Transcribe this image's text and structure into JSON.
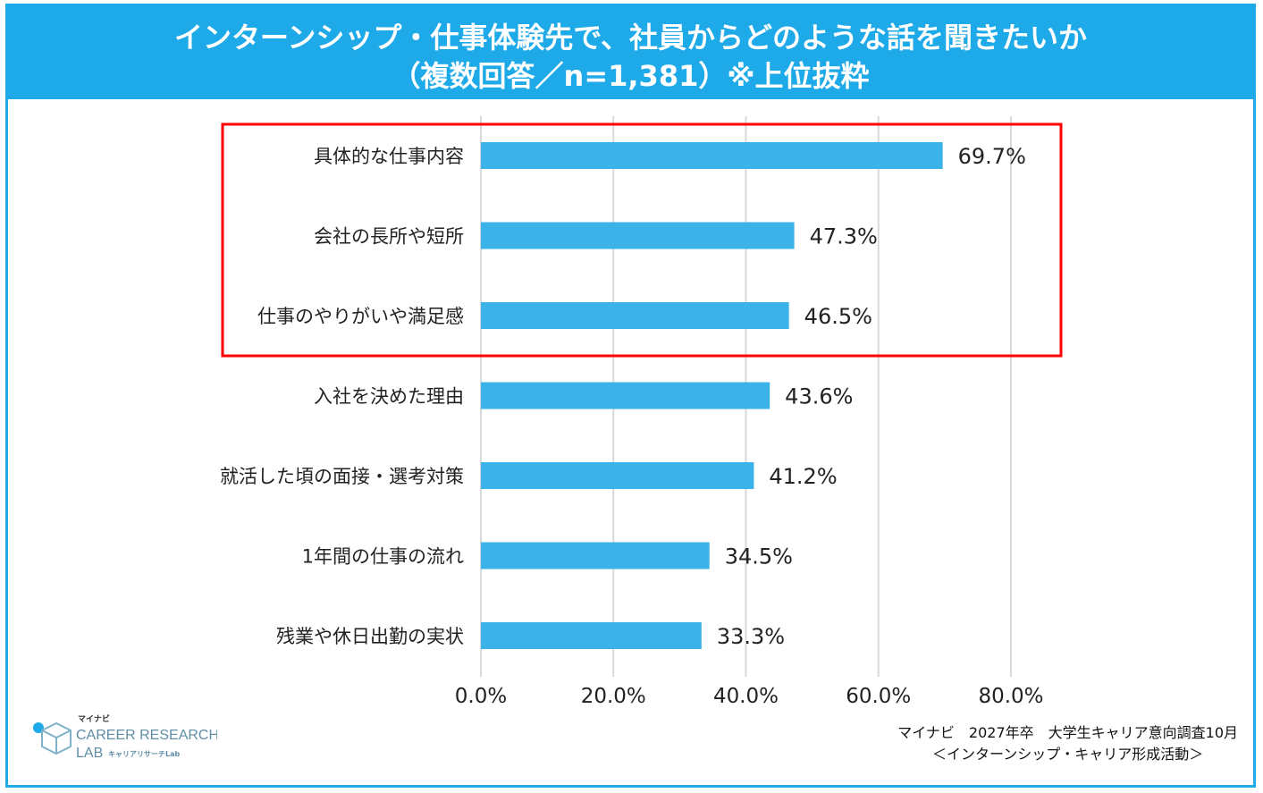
{
  "header": {
    "line1": "インターンシップ・仕事体験先で、社員からどのような話を聞きたいか",
    "line2": "（複数回答／n=1,381）※上位抜粋"
  },
  "colors": {
    "bar": "#3bb3e8",
    "header_bg": "#1ea9e8",
    "highlight_box": "#ff0000",
    "grid": "#d9d9d9"
  },
  "chart_data": {
    "type": "bar",
    "orientation": "horizontal",
    "categories": [
      "具体的な仕事内容",
      "会社の長所や短所",
      "仕事のやりがいや満足感",
      "入社を決めた理由",
      "就活した頃の面接・選考対策",
      "1年間の仕事の流れ",
      "残業や休日出勤の実状"
    ],
    "values": [
      69.7,
      47.3,
      46.5,
      43.6,
      41.2,
      34.5,
      33.3
    ],
    "data_labels": [
      "69.7%",
      "47.3%",
      "46.5%",
      "43.6%",
      "41.2%",
      "34.5%",
      "33.3%"
    ],
    "xlim": [
      0,
      80
    ],
    "xticks": [
      0,
      20,
      40,
      60,
      80
    ],
    "xtick_labels": [
      "0.0%",
      "20.0%",
      "40.0%",
      "60.0%",
      "80.0%"
    ],
    "grid": true,
    "highlighted_count": 3
  },
  "logo": {
    "top": "マイナビ",
    "main": "CAREER RESEARCH",
    "lab": "LAB",
    "sub": "キャリアリサーチLab",
    "icon": "cube-logo-icon"
  },
  "source": {
    "line1": "マイナビ　2027年卒　大学生キャリア意向調査10月",
    "line2": "＜インターンシップ・キャリア形成活動＞"
  }
}
